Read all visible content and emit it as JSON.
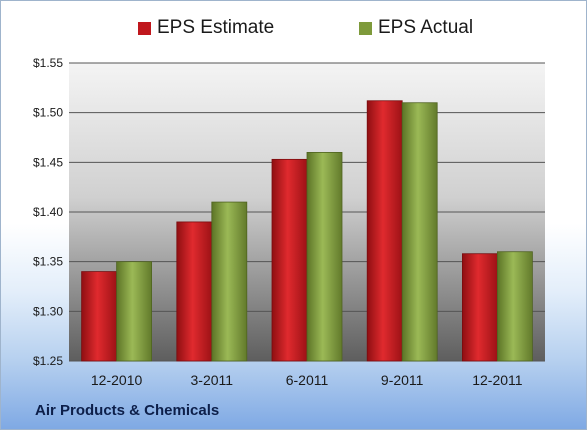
{
  "chart_data": {
    "type": "bar",
    "title": "",
    "xlabel": "",
    "ylabel": "",
    "categories": [
      "12-2010",
      "3-2011",
      "6-2011",
      "9-2011",
      "12-2011"
    ],
    "series": [
      {
        "name": "EPS Estimate",
        "color": "#c0171d",
        "values": [
          1.34,
          1.39,
          1.453,
          1.512,
          1.358
        ]
      },
      {
        "name": "EPS Actual",
        "color": "#7e9a3b",
        "values": [
          1.35,
          1.41,
          1.46,
          1.51,
          1.36
        ]
      }
    ],
    "ylim": [
      1.25,
      1.55
    ],
    "yticks": [
      1.25,
      1.3,
      1.35,
      1.4,
      1.45,
      1.5,
      1.55
    ],
    "ytick_labels": [
      "$1.25",
      "$1.30",
      "$1.35",
      "$1.40",
      "$1.45",
      "$1.50",
      "$1.55"
    ],
    "grid": true,
    "legend_position": "top-center"
  },
  "footer": {
    "company": "Air Products & Chemicals"
  },
  "colors": {
    "plot_top": "#f2f2f2",
    "plot_bottom": "#5f5f5f",
    "background_bottom": "#7fa9e4"
  }
}
